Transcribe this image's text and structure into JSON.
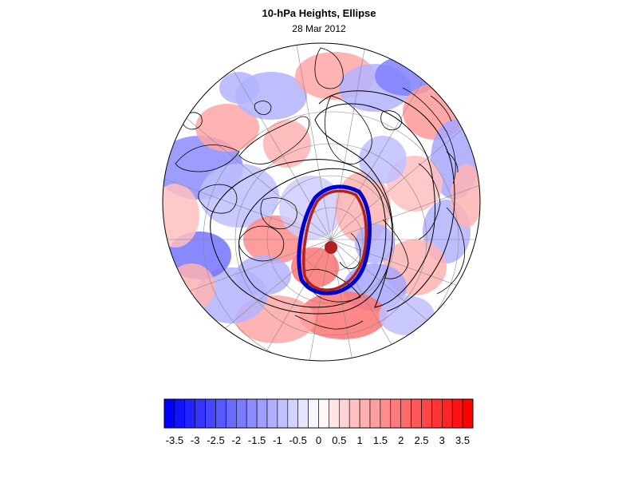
{
  "title": "10-hPa Heights, Ellipse",
  "subtitle": "28 Mar 2012",
  "colorbar": {
    "min": -3.75,
    "max": 3.75,
    "step": 0.25,
    "tick_labels": [
      "-3.5",
      "-3",
      "-2.5",
      "-2",
      "-1.5",
      "-1",
      "-0.5",
      "0",
      "0.5",
      "1",
      "1.5",
      "2",
      "2.5",
      "3",
      "3.5"
    ],
    "colors": {
      "negative_end": "#0000ff",
      "neutral": "#ffffff",
      "positive_end": "#ff0000"
    }
  },
  "map": {
    "projection": "orthographic-north-polar",
    "features": [
      "coastlines",
      "graticule",
      "height-anomaly-shading",
      "geopotential-height-contours",
      "vortex-ellipse",
      "vortex-centroid"
    ],
    "ellipse_colors": {
      "outer": "#b02020",
      "inner": "#0000cc"
    },
    "centroid_color": "#b02020",
    "contour_color": "#000000"
  }
}
